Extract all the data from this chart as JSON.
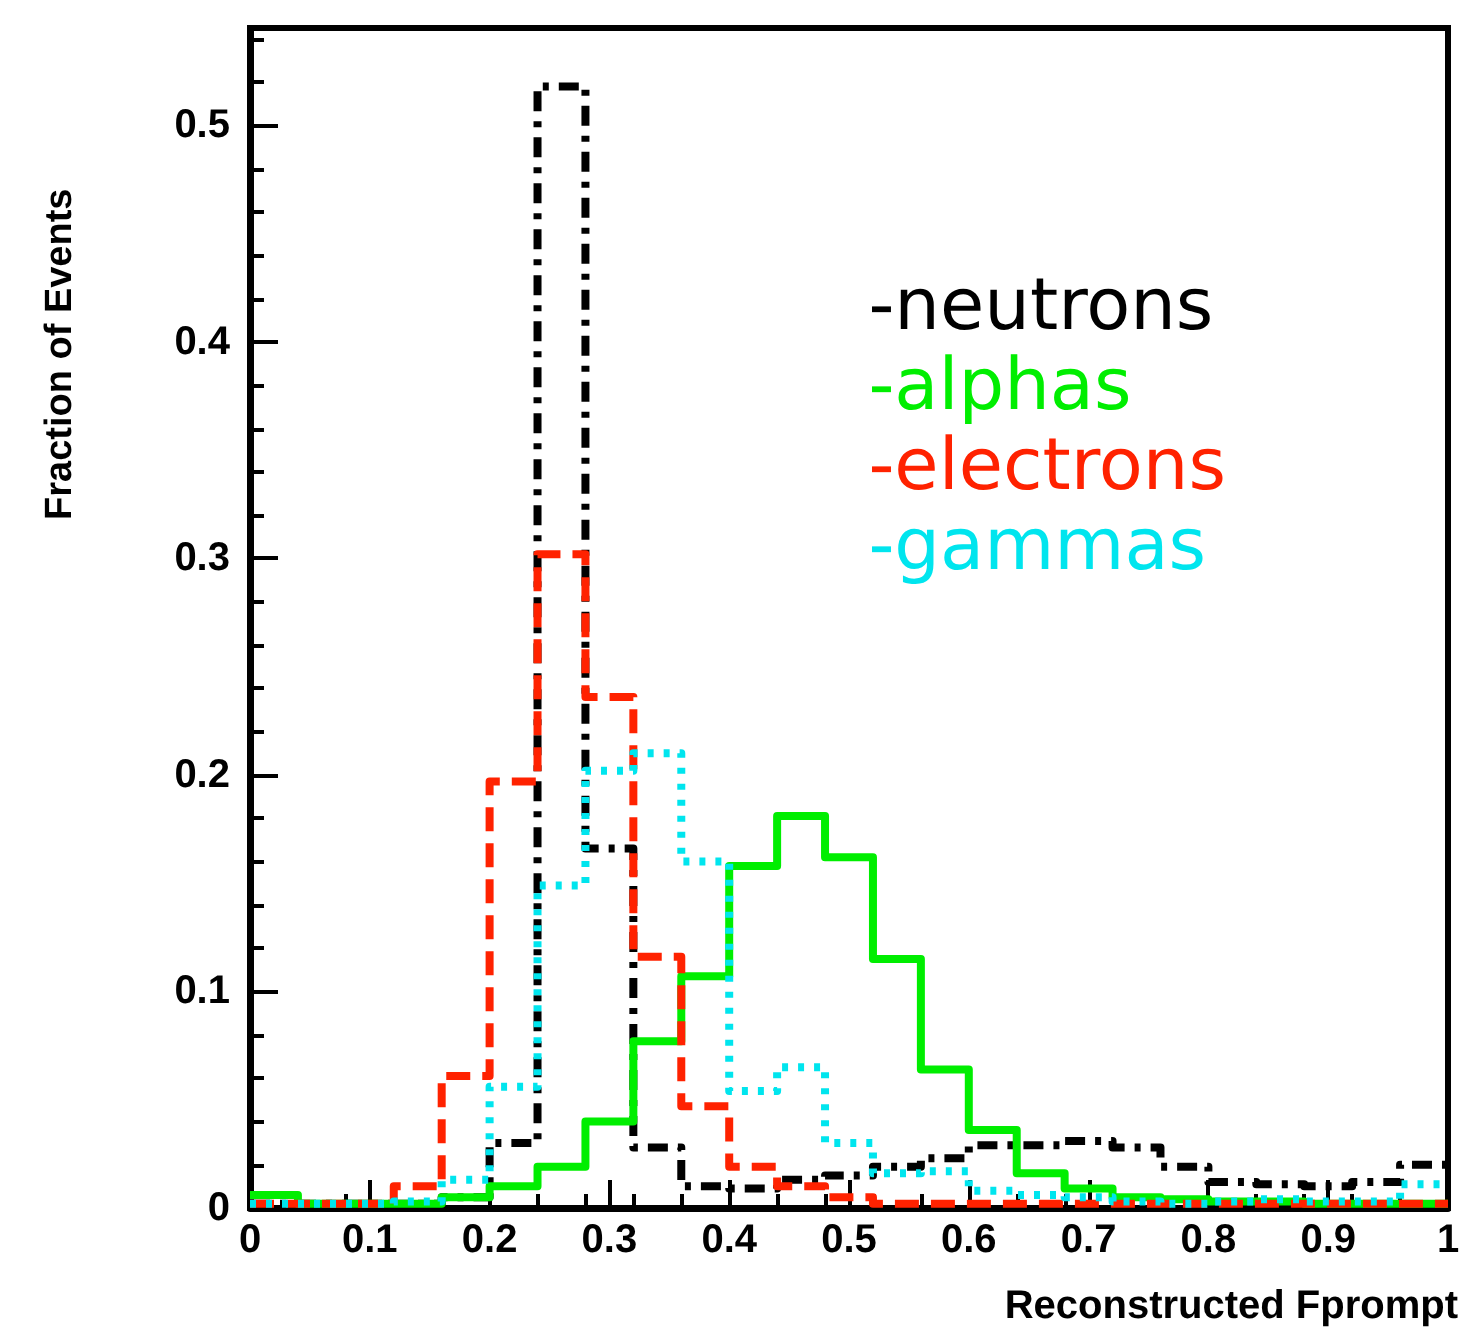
{
  "chart_data": {
    "type": "histogram",
    "xlabel": "Reconstructed Fprompt",
    "ylabel": "Fraction of Events",
    "bins": [
      0,
      0.04,
      0.08,
      0.12,
      0.16,
      0.2,
      0.24,
      0.28,
      0.32,
      0.36,
      0.4,
      0.44,
      0.48,
      0.52,
      0.56,
      0.6,
      0.64,
      0.68,
      0.72,
      0.76,
      0.8,
      0.84,
      0.88,
      0.92,
      0.96,
      1
    ],
    "series": [
      {
        "name": "-neutrons",
        "color": "#000000",
        "line_style": "dashdot",
        "values": [
          0.002,
          0.002,
          0.002,
          0.002,
          0.005,
          0.03,
          0.518,
          0.166,
          0.028,
          0.01,
          0.009,
          0.013,
          0.015,
          0.019,
          0.023,
          0.029,
          0.029,
          0.031,
          0.028,
          0.019,
          0.012,
          0.011,
          0.01,
          0.012,
          0.02
        ]
      },
      {
        "name": "-alphas",
        "color": "#00ee00",
        "line_style": "solid",
        "values": [
          0.006,
          0.002,
          0.002,
          0.002,
          0.005,
          0.01,
          0.019,
          0.04,
          0.077,
          0.107,
          0.158,
          0.181,
          0.162,
          0.115,
          0.064,
          0.036,
          0.016,
          0.009,
          0.005,
          0.004,
          0.003,
          0.003,
          0.002,
          0.002,
          0.002
        ]
      },
      {
        "name": "-electrons",
        "color": "#ff2200",
        "line_style": "dashed",
        "values": [
          0.002,
          0.002,
          0.002,
          0.01,
          0.061,
          0.197,
          0.302,
          0.236,
          0.116,
          0.047,
          0.019,
          0.01,
          0.005,
          0.002,
          0.002,
          0.002,
          0.002,
          0.002,
          0.002,
          0.002,
          0.002,
          0.002,
          0.002,
          0.002,
          0.002
        ]
      },
      {
        "name": "-gammas",
        "color": "#00e5ee",
        "line_style": "dotted",
        "values": [
          0.002,
          0.002,
          0.002,
          0.003,
          0.013,
          0.056,
          0.149,
          0.202,
          0.21,
          0.16,
          0.054,
          0.065,
          0.03,
          0.016,
          0.017,
          0.008,
          0.006,
          0.005,
          0.003,
          0.002,
          0.003,
          0.004,
          0.003,
          0.003,
          0.011
        ]
      }
    ],
    "xlim": [
      0,
      1
    ],
    "xticks": [
      0,
      0.1,
      0.2,
      0.3,
      0.4,
      0.5,
      0.6,
      0.7,
      0.8,
      0.9,
      1
    ],
    "ylim": [
      0,
      0.545
    ],
    "yticks": [
      0,
      0.1,
      0.2,
      0.3,
      0.4,
      0.5
    ],
    "grid": false,
    "legend": "top right"
  }
}
